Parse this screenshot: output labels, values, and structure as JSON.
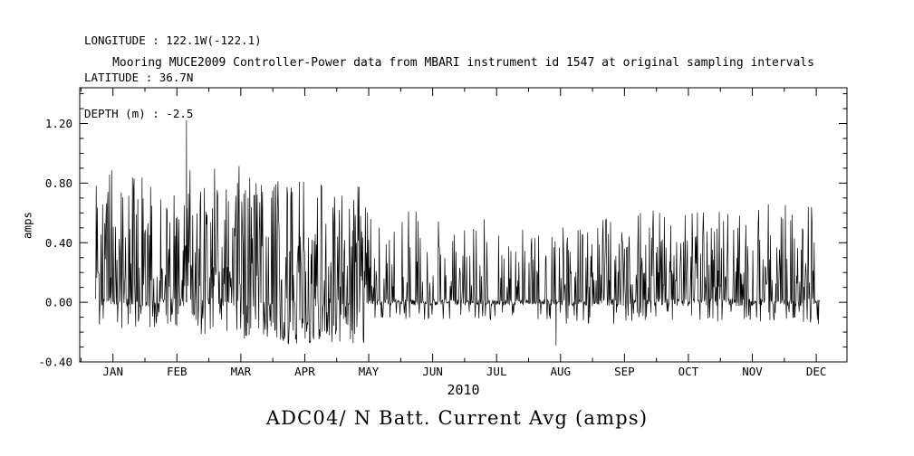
{
  "meta": {
    "longitude": "LONGITUDE : 122.1W(-122.1)",
    "latitude": "LATITUDE : 36.7N",
    "depth": "DEPTH (m) : -2.5"
  },
  "chart_data": {
    "type": "line",
    "title": "Mooring MUCE2009 Controller-Power data from MBARI instrument id 1547 at original sampling intervals",
    "xlabel": "2010",
    "ylabel": "amps",
    "caption": "ADC04/ N Batt. Current Avg (amps)",
    "line_color": "#000000",
    "axis_color": "#000000",
    "grid": false,
    "legend": "none",
    "x_tick_labels": [
      "JAN",
      "FEB",
      "MAR",
      "APR",
      "MAY",
      "JUN",
      "JUL",
      "AUG",
      "SEP",
      "OCT",
      "NOV",
      "DEC"
    ],
    "y_ticks": [
      -0.4,
      0.0,
      0.4,
      0.8,
      1.2
    ],
    "y_minor_step": 0.1,
    "ylim": [
      -0.4,
      1.44
    ],
    "xlim_months": [
      -0.52,
      11.48
    ],
    "data_range_months": [
      -0.27,
      11.05
    ],
    "baseline": 0.0,
    "y_max_observed": 1.22,
    "y_min_observed": -0.29,
    "samples_per_month": 120,
    "seed": 1547,
    "monthly_envelope": [
      {
        "label": "JAN",
        "spike_prob": 0.45,
        "up_max": 0.9,
        "down_prob": 0.18,
        "down_max": 0.18,
        "noise": 0.03
      },
      {
        "label": "FEB",
        "spike_prob": 0.5,
        "up_max": 0.92,
        "down_prob": 0.2,
        "down_max": 0.22,
        "noise": 0.03
      },
      {
        "label": "MAR",
        "spike_prob": 0.45,
        "up_max": 0.85,
        "down_prob": 0.4,
        "down_max": 0.28,
        "noise": 0.03
      },
      {
        "label": "APR",
        "spike_prob": 0.45,
        "up_max": 0.82,
        "down_prob": 0.4,
        "down_max": 0.28,
        "noise": 0.03
      },
      {
        "label": "MAY",
        "spike_prob": 0.26,
        "up_max": 0.62,
        "down_prob": 0.1,
        "down_max": 0.12,
        "noise": 0.02
      },
      {
        "label": "JUN",
        "spike_prob": 0.26,
        "up_max": 0.56,
        "down_prob": 0.1,
        "down_max": 0.12,
        "noise": 0.02
      },
      {
        "label": "JUL",
        "spike_prob": 0.28,
        "up_max": 0.5,
        "down_prob": 0.1,
        "down_max": 0.12,
        "noise": 0.02
      },
      {
        "label": "AUG",
        "spike_prob": 0.38,
        "up_max": 0.56,
        "down_prob": 0.12,
        "down_max": 0.15,
        "noise": 0.025
      },
      {
        "label": "SEP",
        "spike_prob": 0.42,
        "up_max": 0.62,
        "down_prob": 0.12,
        "down_max": 0.13,
        "noise": 0.025
      },
      {
        "label": "OCT",
        "spike_prob": 0.42,
        "up_max": 0.62,
        "down_prob": 0.12,
        "down_max": 0.13,
        "noise": 0.025
      },
      {
        "label": "NOV",
        "spike_prob": 0.42,
        "up_max": 0.66,
        "down_prob": 0.14,
        "down_max": 0.15,
        "noise": 0.025
      },
      {
        "label": "DEC",
        "spike_prob": 0.42,
        "up_max": 0.68,
        "down_prob": 0.14,
        "down_max": 0.15,
        "noise": 0.025
      }
    ],
    "special_spikes": [
      {
        "t_months": 1.15,
        "value": 1.22
      },
      {
        "t_months": 6.93,
        "value": -0.29
      }
    ]
  }
}
